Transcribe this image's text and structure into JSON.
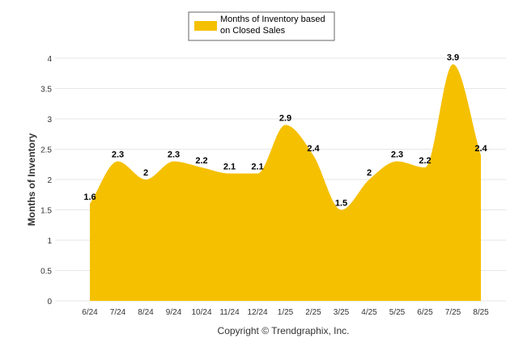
{
  "chart_data": {
    "type": "area",
    "categories": [
      "6/24",
      "7/24",
      "8/24",
      "9/24",
      "10/24",
      "11/24",
      "12/24",
      "1/25",
      "2/25",
      "3/25",
      "4/25",
      "5/25",
      "6/25",
      "7/25",
      "8/25"
    ],
    "series": [
      {
        "name": "Months of Inventory based on Closed Sales",
        "legend_lines": [
          "Months of Inventory based",
          "on Closed Sales"
        ],
        "values": [
          1.6,
          2.3,
          2.0,
          2.3,
          2.2,
          2.1,
          2.1,
          2.9,
          2.4,
          1.5,
          2.0,
          2.3,
          2.2,
          3.9,
          2.4
        ],
        "labels": [
          "1.6",
          "2.3",
          "2",
          "2.3",
          "2.2",
          "2.1",
          "2.1",
          "2.9",
          "2.4",
          "1.5",
          "2",
          "2.3",
          "2.2",
          "3.9",
          "2.4"
        ],
        "color": "#f5c000"
      }
    ],
    "ylabel": "Months of Inventory",
    "ylim": [
      0,
      4
    ],
    "yticks": [
      "0",
      "0.5",
      "1",
      "1.5",
      "2",
      "2.5",
      "3",
      "3.5",
      "4"
    ],
    "grid": true,
    "legend_position": "top-center"
  },
  "footer": {
    "copyright": "Copyright © Trendgraphix, Inc."
  },
  "colors": {
    "area": "#f5c000",
    "grid": "#e6e6e6",
    "legend_border": "#666666"
  }
}
